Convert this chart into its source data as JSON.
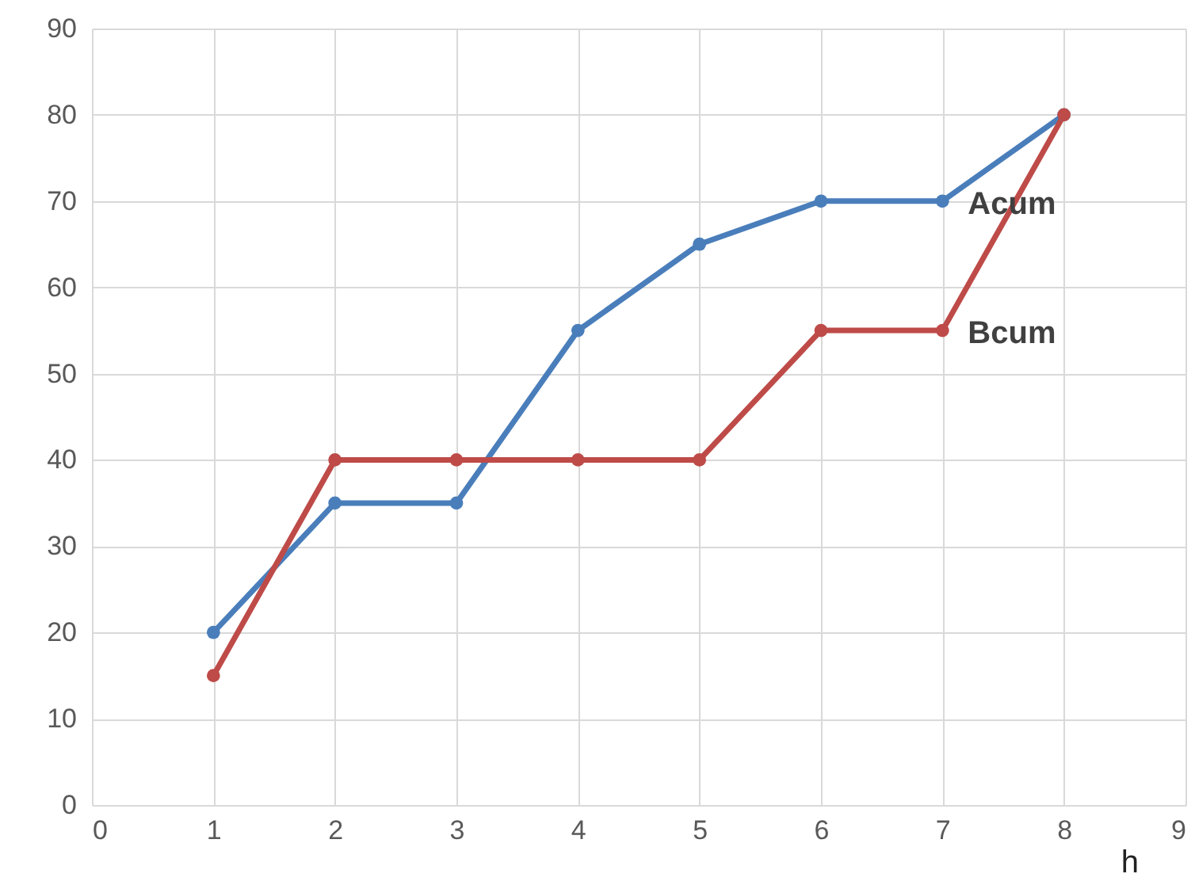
{
  "chart_data": {
    "type": "line",
    "xlabel": "h",
    "x": [
      1,
      2,
      3,
      4,
      5,
      6,
      7,
      8
    ],
    "series": [
      {
        "name": "Acum",
        "color": "#4a7ebb",
        "values": [
          20,
          35,
          35,
          55,
          65,
          70,
          70,
          80
        ]
      },
      {
        "name": "Bcum",
        "color": "#be4b48",
        "values": [
          15,
          40,
          40,
          40,
          40,
          55,
          55,
          80
        ]
      }
    ],
    "xlim": [
      0,
      9
    ],
    "xticks": [
      0,
      1,
      2,
      3,
      4,
      5,
      6,
      7,
      8,
      9
    ],
    "ylim": [
      0,
      90
    ],
    "yticks": [
      0,
      10,
      20,
      30,
      40,
      50,
      60,
      70,
      80,
      90
    ],
    "grid": true,
    "marker": "circle",
    "line_style": "solid"
  }
}
